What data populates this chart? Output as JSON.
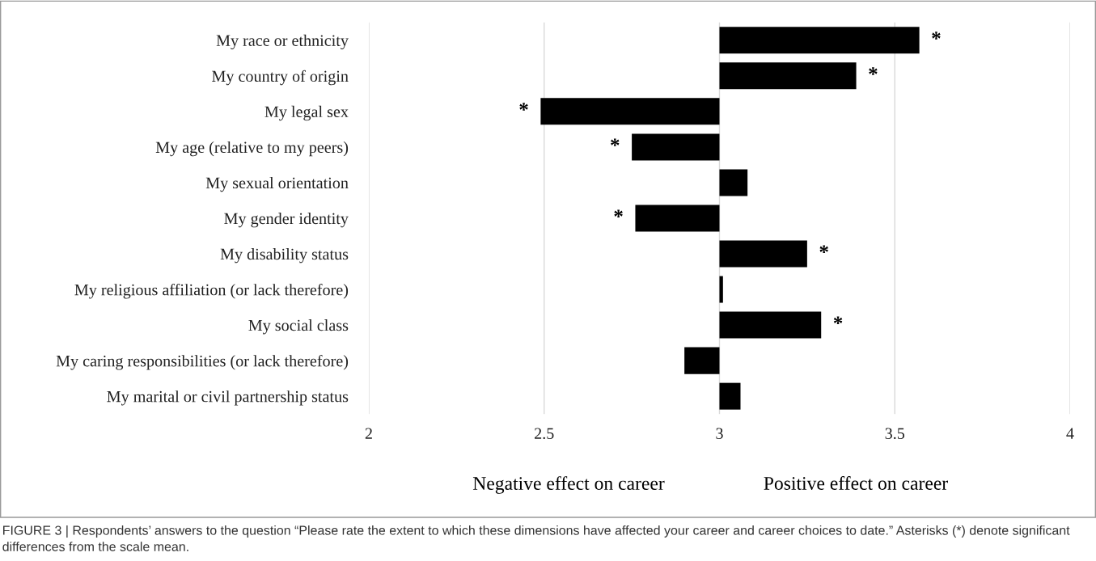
{
  "chart_data": {
    "type": "bar",
    "orientation": "horizontal",
    "categories": [
      "My race or ethnicity",
      "My country of origin",
      "My legal sex",
      "My age (relative to my peers)",
      "My sexual orientation",
      "My gender identity",
      "My disability status",
      "My religious affiliation (or lack therefore)",
      "My social class",
      "My caring responsibilities (or lack therefore)",
      "My marital or civil partnership status"
    ],
    "base": [
      3,
      3,
      3,
      3,
      3,
      3,
      3,
      3,
      3,
      3,
      3
    ],
    "values": [
      0.57,
      0.39,
      -0.51,
      -0.25,
      0.08,
      -0.24,
      0.25,
      0.01,
      0.29,
      -0.1,
      0.06
    ],
    "value_labels": [
      "*",
      "*",
      "*",
      "*",
      null,
      "*",
      "*",
      null,
      "*",
      null,
      null
    ],
    "color": "#000000",
    "xlim": [
      2,
      4
    ],
    "xticks": [
      2,
      2.5,
      3,
      3.5,
      4
    ],
    "grid": "x",
    "annotations": [
      "Negative effect on career",
      "Positive effect on career",
      "FIGURE 3 | Respondents’ answers to the question “Please rate the extent to which these dimensions have affected your career and career choices to date.” Asterisks (*) denote significant differences from the scale mean."
    ]
  }
}
